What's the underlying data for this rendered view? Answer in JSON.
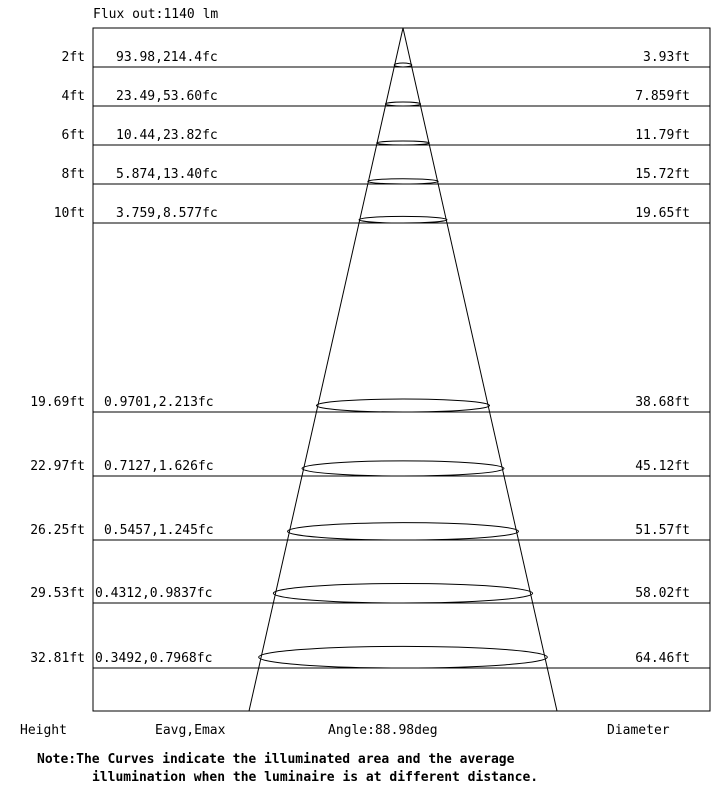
{
  "flux_label": "Flux out:1140 lm",
  "footer": {
    "height_label": "Height",
    "eavg_label": "Eavg,Emax",
    "angle_label": "Angle:88.98deg",
    "diameter_label": "Diameter"
  },
  "note": {
    "line1": "Note:The Curves indicate the illuminated area and the average",
    "line2": "illumination when the luminaire is at different distance."
  },
  "chart_data": {
    "type": "table",
    "beam_angle_deg": 88.98,
    "flux_lm": 1140,
    "rows": [
      {
        "height": "2ft",
        "height_ft": 2,
        "illum": "93.98,214.4fc",
        "eavg_fc": 93.98,
        "emax_fc": 214.4,
        "diameter": "3.93ft",
        "diameter_ft": 3.93
      },
      {
        "height": "4ft",
        "height_ft": 4,
        "illum": "23.49,53.60fc",
        "eavg_fc": 23.49,
        "emax_fc": 53.6,
        "diameter": "7.859ft",
        "diameter_ft": 7.859
      },
      {
        "height": "6ft",
        "height_ft": 6,
        "illum": "10.44,23.82fc",
        "eavg_fc": 10.44,
        "emax_fc": 23.82,
        "diameter": "11.79ft",
        "diameter_ft": 11.79
      },
      {
        "height": "8ft",
        "height_ft": 8,
        "illum": "5.874,13.40fc",
        "eavg_fc": 5.874,
        "emax_fc": 13.4,
        "diameter": "15.72ft",
        "diameter_ft": 15.72
      },
      {
        "height": "10ft",
        "height_ft": 10,
        "illum": "3.759,8.577fc",
        "eavg_fc": 3.759,
        "emax_fc": 8.577,
        "diameter": "19.65ft",
        "diameter_ft": 19.65
      },
      {
        "height": "19.69ft",
        "height_ft": 19.69,
        "illum": "0.9701,2.213fc",
        "eavg_fc": 0.9701,
        "emax_fc": 2.213,
        "diameter": "38.68ft",
        "diameter_ft": 38.68
      },
      {
        "height": "22.97ft",
        "height_ft": 22.97,
        "illum": "0.7127,1.626fc",
        "eavg_fc": 0.7127,
        "emax_fc": 1.626,
        "diameter": "45.12ft",
        "diameter_ft": 45.12
      },
      {
        "height": "26.25ft",
        "height_ft": 26.25,
        "illum": "0.5457,1.245fc",
        "eavg_fc": 0.5457,
        "emax_fc": 1.245,
        "diameter": "51.57ft",
        "diameter_ft": 51.57
      },
      {
        "height": "29.53ft",
        "height_ft": 29.53,
        "illum": "0.4312,0.9837fc",
        "eavg_fc": 0.4312,
        "emax_fc": 0.9837,
        "diameter": "58.02ft",
        "diameter_ft": 58.02
      },
      {
        "height": "32.81ft",
        "height_ft": 32.81,
        "illum": "0.3492,0.7968fc",
        "eavg_fc": 0.3492,
        "emax_fc": 0.7968,
        "diameter": "64.46ft",
        "diameter_ft": 64.46
      }
    ]
  }
}
